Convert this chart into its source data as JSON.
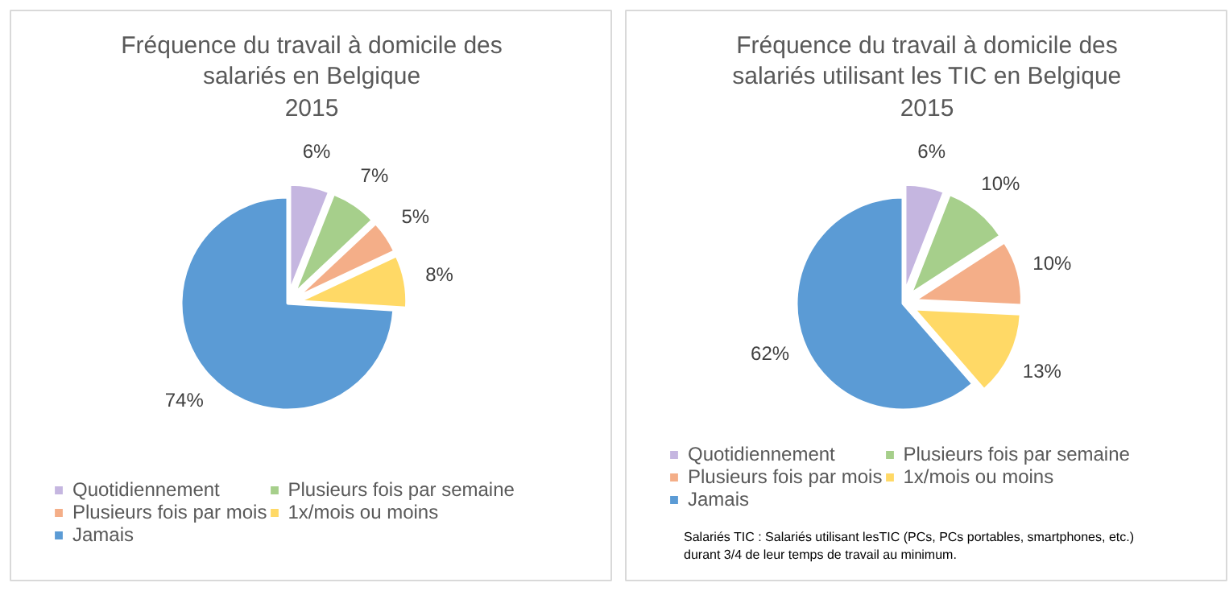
{
  "chart_data": [
    {
      "type": "pie",
      "title": "Fréquence du travail à domicile des salariés en Belgique",
      "subtitle": "2015",
      "categories": [
        "Quotidiennement",
        "Plusieurs fois par semaine",
        "Plusieurs fois par mois",
        "1x/mois ou moins",
        "Jamais"
      ],
      "values": [
        6,
        7,
        5,
        8,
        74
      ],
      "colors": [
        "#c5b6e0",
        "#a6cf8b",
        "#f4ae88",
        "#ffd966",
        "#5b9bd5"
      ],
      "value_labels": [
        "6%",
        "7%",
        "5%",
        "8%",
        "74%"
      ],
      "legend": "bottom"
    },
    {
      "type": "pie",
      "title": "Fréquence du travail à domicile des salariés utilisant les TIC en Belgique",
      "subtitle": "2015",
      "categories": [
        "Quotidiennement",
        "Plusieurs fois par semaine",
        "Plusieurs fois par mois",
        "1x/mois ou moins",
        "Jamais"
      ],
      "values": [
        6,
        10,
        10,
        13,
        62
      ],
      "colors": [
        "#c5b6e0",
        "#a6cf8b",
        "#f4ae88",
        "#ffd966",
        "#5b9bd5"
      ],
      "value_labels": [
        "6%",
        "10%",
        "10%",
        "13%",
        "62%"
      ],
      "legend": "bottom",
      "annotations": [
        "Salariés TIC : Salariés utilisant lesTIC (PCs, PCs portables, smartphones, etc.)\ndurant 3/4 de leur temps de travail au minimum."
      ]
    }
  ]
}
